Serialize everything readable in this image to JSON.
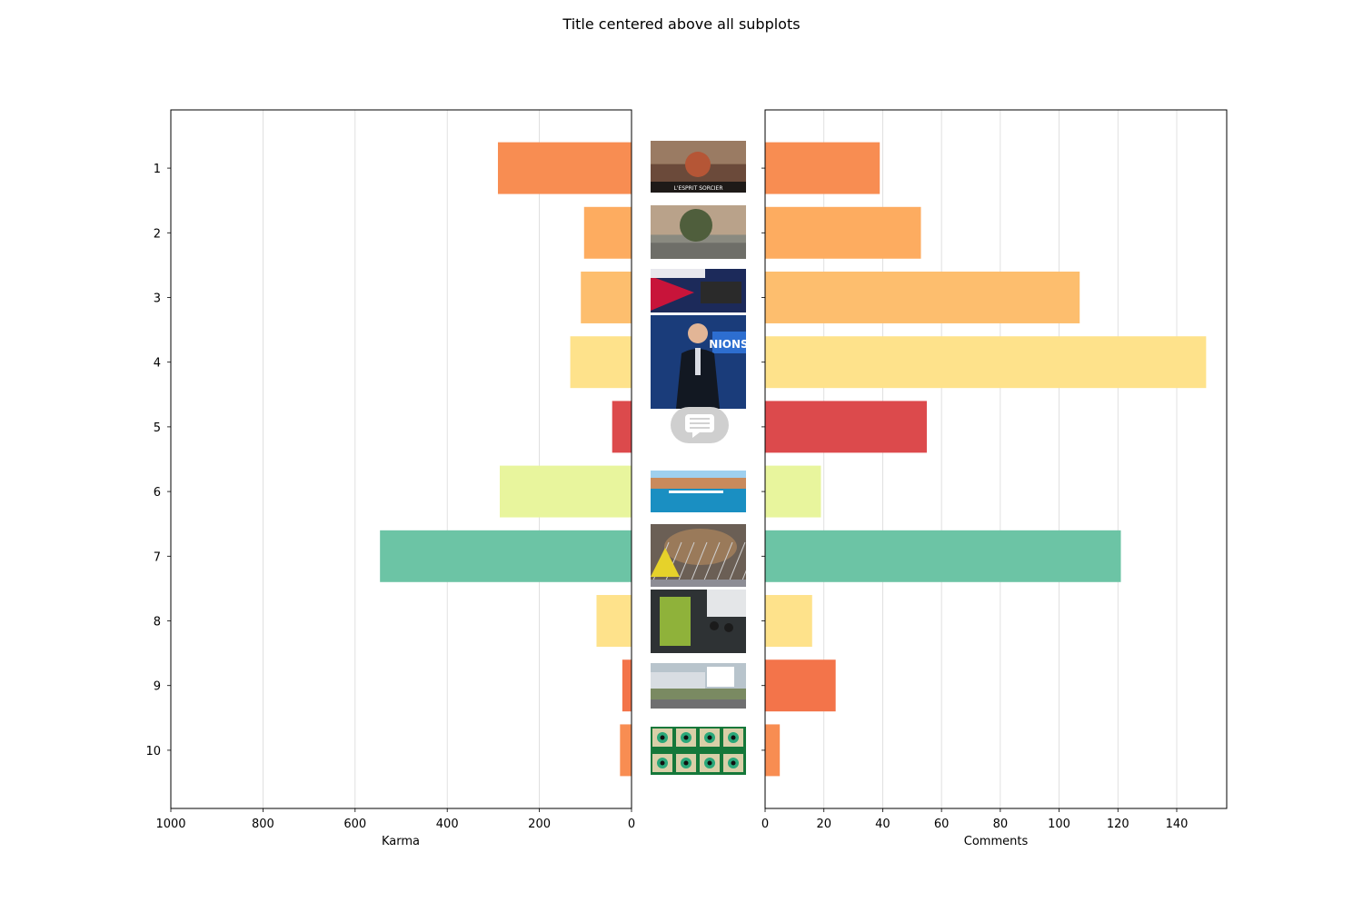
{
  "chart_data": {
    "type": "bar",
    "orientation": "horizontal",
    "title": "Title centered above all subplots",
    "categories": [
      "1",
      "2",
      "3",
      "4",
      "5",
      "6",
      "7",
      "8",
      "9",
      "10"
    ],
    "bar_colors": [
      "#f88d52",
      "#fdac60",
      "#fdbe6e",
      "#fee28b",
      "#dc4a4c",
      "#e8f59d",
      "#6cc4a5",
      "#fee28b",
      "#f3744a",
      "#f88d52"
    ],
    "panels": [
      {
        "name": "karma",
        "xlabel": "Karma",
        "xlim": [
          1000,
          0
        ],
        "xticks": [
          1000,
          800,
          600,
          400,
          200,
          0
        ],
        "values": [
          290,
          103,
          110,
          133,
          42,
          286,
          546,
          76,
          20,
          25
        ]
      },
      {
        "name": "comments",
        "xlabel": "Comments",
        "xlim": [
          0,
          157
        ],
        "xticks": [
          0,
          20,
          40,
          60,
          80,
          100,
          120,
          140
        ],
        "values": [
          39,
          53,
          107,
          150,
          55,
          19,
          121,
          16,
          24,
          5
        ]
      }
    ],
    "grid": "vertical",
    "legend": "none"
  },
  "thumbnails": [
    {
      "icon": "game-poster-thumbnail",
      "caption": "L'ESPRIT SORCIER"
    },
    {
      "icon": "street-square-thumbnail"
    },
    {
      "icon": "flag-newsreel-thumbnail"
    },
    {
      "icon": "news-anchor-thumbnail",
      "caption": "NIONS"
    },
    {
      "icon": "comment-placeholder-icon"
    },
    {
      "icon": "harbor-town-thumbnail"
    },
    {
      "icon": "radioactive-fence-thumbnail"
    },
    {
      "icon": "bus-stop-poster-thumbnail"
    },
    {
      "icon": "office-building-thumbnail"
    },
    {
      "icon": "green-eyes-pattern-thumbnail"
    }
  ]
}
